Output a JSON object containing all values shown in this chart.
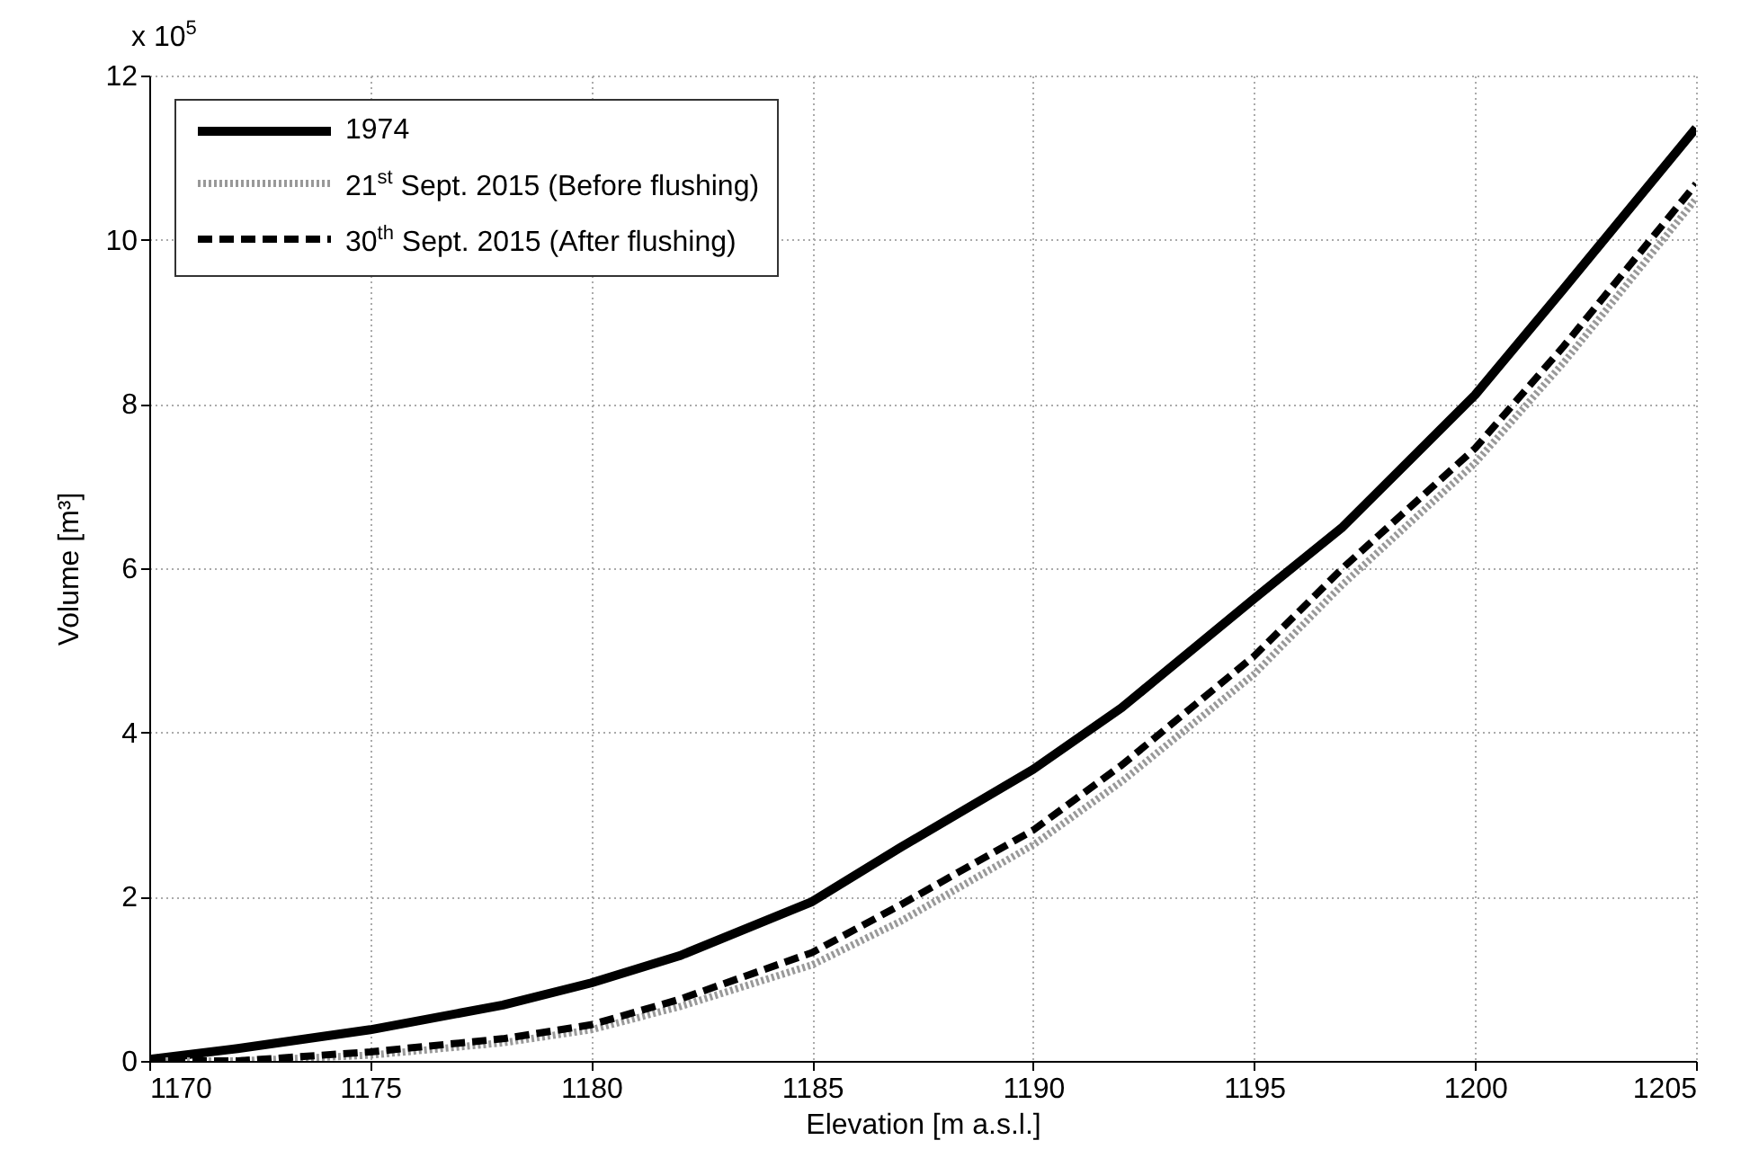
{
  "chart_data": {
    "type": "line",
    "xlabel": "Elevation [m a.s.l.]",
    "ylabel": "Volume [m³]",
    "annotations": [
      "x 10$^{5}$"
    ],
    "x": [
      1170,
      1172,
      1175,
      1178,
      1180,
      1182,
      1185,
      1187,
      1190,
      1192,
      1195,
      1197,
      1200,
      1202,
      1205
    ],
    "series": [
      {
        "name": "1974",
        "color": "#000000",
        "line_style": "solid",
        "values": [
          0.02,
          0.15,
          0.38,
          0.68,
          0.95,
          1.28,
          1.94,
          2.6,
          3.55,
          4.3,
          5.63,
          6.5,
          8.11,
          9.4,
          11.36
        ]
      },
      {
        "name": "21$^{st}$ Sept. 2015 (Before flushing)",
        "color": "#999999",
        "line_style": "dotted",
        "values": [
          0,
          0,
          0.07,
          0.22,
          0.38,
          0.66,
          1.17,
          1.7,
          2.63,
          3.4,
          4.71,
          5.8,
          7.28,
          8.5,
          10.5
        ]
      },
      {
        "name": "30$^{th}$ Sept. 2015 (After flushing)",
        "color": "#000000",
        "line_style": "dashed",
        "values": [
          0,
          0,
          0.11,
          0.27,
          0.44,
          0.75,
          1.32,
          1.9,
          2.81,
          3.6,
          4.93,
          6.0,
          7.46,
          8.7,
          10.68
        ]
      }
    ],
    "xlim": [
      1170,
      1205
    ],
    "xticks": [
      1170,
      1175,
      1180,
      1185,
      1190,
      1195,
      1200,
      1205
    ],
    "ylim": [
      0,
      12
    ],
    "yticks": [
      0,
      2,
      4,
      6,
      8,
      10,
      12
    ],
    "grid": true,
    "legend": "top left"
  }
}
